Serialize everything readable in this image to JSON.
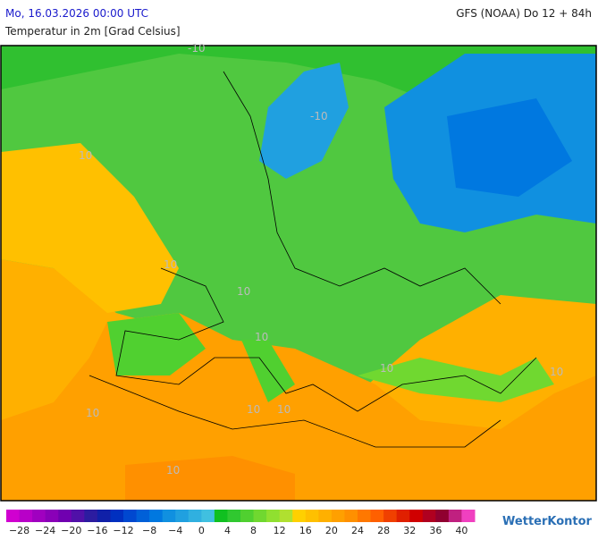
{
  "header": {
    "date": "Mo, 16.03.2026 00:00 UTC",
    "model": "GFS (NOAA) Do 12 + 84h",
    "subtitle": "Temperatur in 2m [Grad Celsius]"
  },
  "map": {
    "contour_labels": [
      "10",
      "10",
      "10",
      "10",
      "10",
      "10",
      "10",
      "10",
      "10",
      "-10",
      "-10",
      "10"
    ]
  },
  "legend": {
    "lim": [
      -30,
      42
    ],
    "colors": [
      "#d000d0",
      "#b800c8",
      "#a000c0",
      "#8a00b8",
      "#7000b0",
      "#5010a8",
      "#2c1ca0",
      "#1020a8",
      "#0030c0",
      "#0048d0",
      "#0060d8",
      "#0078e0",
      "#1090e0",
      "#20a0e0",
      "#30b0e0",
      "#40c0e0",
      "#10c020",
      "#30c830",
      "#50d030",
      "#70d830",
      "#90e030",
      "#b0e030",
      "#ffd000",
      "#ffc000",
      "#ffb000",
      "#ffa000",
      "#ff9000",
      "#ff7800",
      "#ff6000",
      "#f04000",
      "#e02000",
      "#d00000",
      "#b00020",
      "#900030",
      "#c02080",
      "#f040c0"
    ],
    "ticks": [
      {
        "value": -28,
        "label": "−28"
      },
      {
        "value": -24,
        "label": "−24"
      },
      {
        "value": -20,
        "label": "−20"
      },
      {
        "value": -16,
        "label": "−16"
      },
      {
        "value": -12,
        "label": "−12"
      },
      {
        "value": -8,
        "label": "−8"
      },
      {
        "value": -4,
        "label": "−4"
      },
      0,
      4,
      8,
      12,
      16,
      20,
      24,
      28,
      32,
      36,
      40
    ]
  },
  "brand": "WetterKontor"
}
